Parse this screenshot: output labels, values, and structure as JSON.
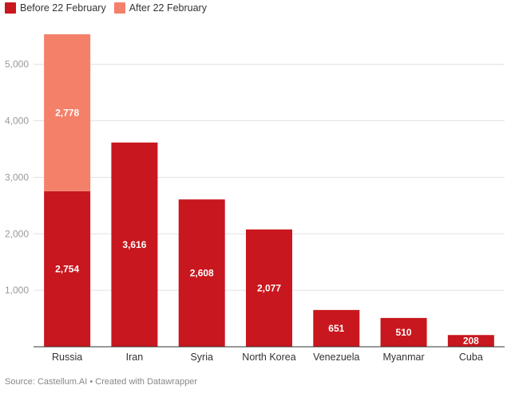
{
  "legend": [
    {
      "label": "Before 22 February",
      "color": "#c8171e"
    },
    {
      "label": "After 22 February",
      "color": "#f4806a"
    }
  ],
  "footer": {
    "source": "Source: Castellum.AI • Created with Datawrapper"
  },
  "chart_data": {
    "type": "bar",
    "stacked": true,
    "title": "",
    "xlabel": "",
    "ylabel": "",
    "categories": [
      "Russia",
      "Iran",
      "Syria",
      "North Korea",
      "Venezuela",
      "Myanmar",
      "Cuba"
    ],
    "series": [
      {
        "name": "Before 22 February",
        "color": "#c8171e",
        "values": [
          2754,
          3616,
          2608,
          2077,
          651,
          510,
          208
        ],
        "labels": [
          "2,754",
          "3,616",
          "2,608",
          "2,077",
          "651",
          "510",
          "208"
        ]
      },
      {
        "name": "After 22 February",
        "color": "#f4806a",
        "values": [
          2778,
          0,
          0,
          0,
          0,
          0,
          0
        ],
        "labels": [
          "2,778",
          "",
          "",
          "",
          "",
          "",
          ""
        ]
      }
    ],
    "yticks": [
      1000,
      2000,
      3000,
      4000,
      5000
    ],
    "ytick_labels": [
      "1,000",
      "2,000",
      "3,000",
      "4,000",
      "5,000"
    ],
    "ylim": [
      0,
      5532
    ],
    "grid": true,
    "legend_position": "top-left"
  }
}
